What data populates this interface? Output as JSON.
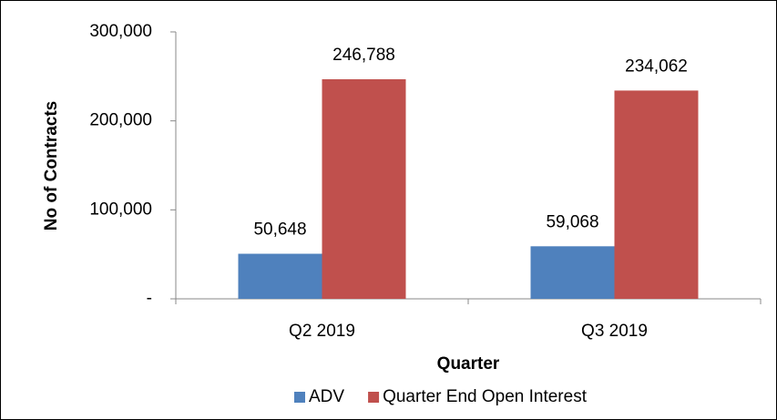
{
  "chart_data": {
    "type": "bar",
    "categories": [
      "Q2 2019",
      "Q3 2019"
    ],
    "series": [
      {
        "name": "ADV",
        "color": "#4f81bd",
        "values": [
          50648,
          59068
        ],
        "value_labels": [
          "50,648",
          "59,068"
        ]
      },
      {
        "name": "Quarter End Open Interest",
        "color": "#c0504d",
        "values": [
          246788,
          234062
        ],
        "value_labels": [
          "246,788",
          "234,062"
        ]
      }
    ],
    "x_label": "Quarter",
    "y_label": "No of Contracts",
    "ylim": [
      0,
      300000
    ],
    "yticks": [
      {
        "value": 0,
        "label": "-"
      },
      {
        "value": 100000,
        "label": "100,000"
      },
      {
        "value": 200000,
        "label": "200,000"
      },
      {
        "value": 300000,
        "label": "300,000"
      }
    ],
    "grid": false,
    "legend": "bottom"
  }
}
